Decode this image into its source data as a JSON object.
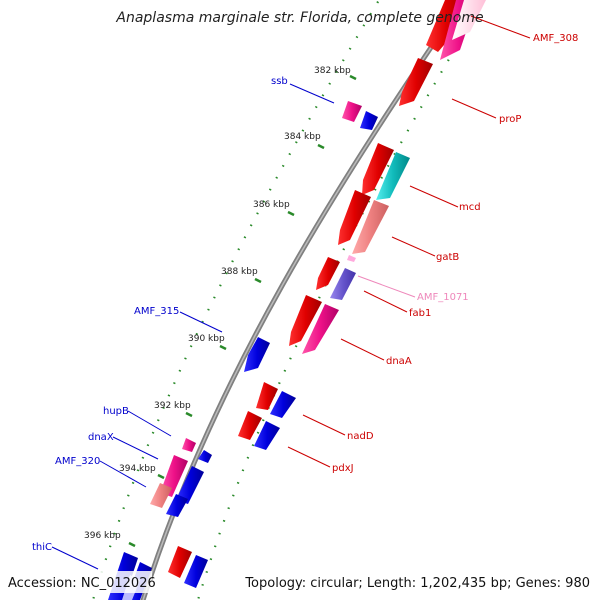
{
  "title": "Anaplasma marginale str. Florida, complete genome",
  "footer": {
    "accession": "Accession: NC_012026",
    "summary": "Topology: circular; Length: 1,202,435 bp; Genes: 980"
  },
  "colors": {
    "backbone": "#808080",
    "tick": "#2a8a2a",
    "forward_label": "#0000cc",
    "reverse_label": "#cc0000",
    "pink_label": "#ee88bb"
  },
  "ticks": [
    "382 kbp",
    "384 kbp",
    "386 kbp",
    "388 kbp",
    "390 kbp",
    "392 kbp",
    "394 kbp",
    "396 kbp"
  ],
  "genes": [
    {
      "label": "AMF_308",
      "color": "#cc0000"
    },
    {
      "label": "proP",
      "color": "#cc0000"
    },
    {
      "label": "ssb",
      "color": "#0000cc"
    },
    {
      "label": "mcd",
      "color": "#cc0000"
    },
    {
      "label": "gatB",
      "color": "#cc0000"
    },
    {
      "label": "AMF_1071",
      "color": "#ee88bb"
    },
    {
      "label": "fab1",
      "color": "#cc0000"
    },
    {
      "label": "AMF_315",
      "color": "#0000cc"
    },
    {
      "label": "dnaA",
      "color": "#cc0000"
    },
    {
      "label": "hupB",
      "color": "#0000cc"
    },
    {
      "label": "nadD",
      "color": "#cc0000"
    },
    {
      "label": "dnaX",
      "color": "#0000cc"
    },
    {
      "label": "AMF_320",
      "color": "#0000cc"
    },
    {
      "label": "pdxJ",
      "color": "#cc0000"
    },
    {
      "label": "thiC",
      "color": "#0000cc"
    }
  ]
}
